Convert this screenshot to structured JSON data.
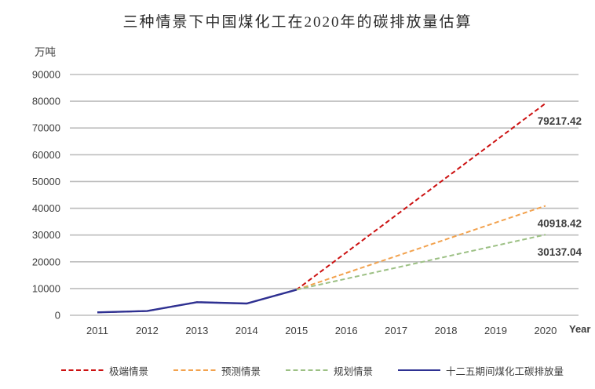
{
  "chart": {
    "title": "三种情景下中国煤化工在2020年的碳排放量估算",
    "y_unit": "万吨",
    "x_label": "Year"
  },
  "chart_data": {
    "type": "line",
    "title": "三种情景下中国煤化工在2020年的碳排放量估算",
    "ylabel": "万吨",
    "xlabel": "Year",
    "ylim": [
      0,
      90000
    ],
    "y_ticks": [
      0,
      10000,
      20000,
      30000,
      40000,
      50000,
      60000,
      70000,
      80000,
      90000
    ],
    "x_ticks": [
      2011,
      2012,
      2013,
      2014,
      2015,
      2016,
      2017,
      2018,
      2019,
      2020
    ],
    "grid": true,
    "gridline_color": "#bdbdbd",
    "legend_position": "bottom",
    "series": [
      {
        "name": "极端情景",
        "color": "#cc1111",
        "dash": true,
        "x": [
          2011,
          2012,
          2013,
          2014,
          2015,
          2020
        ],
        "values": [
          1100,
          1600,
          4900,
          4400,
          9550,
          79217.42
        ],
        "end_label": "79217.42"
      },
      {
        "name": "预测情景",
        "color": "#f2a24e",
        "dash": true,
        "x": [
          2015,
          2020
        ],
        "values": [
          9550,
          40918.42
        ],
        "end_label": "40918.42"
      },
      {
        "name": "规划情景",
        "color": "#9cc084",
        "dash": true,
        "x": [
          2015,
          2020
        ],
        "values": [
          9550,
          30137.04
        ],
        "end_label": "30137.04"
      },
      {
        "name": "十二五期间煤化工碳排放量",
        "color": "#2e3192",
        "dash": false,
        "x": [
          2011,
          2012,
          2013,
          2014,
          2015
        ],
        "values": [
          1100,
          1600,
          4900,
          4400,
          9550
        ]
      }
    ],
    "annotations": [
      "79217.42",
      "40918.42",
      "30137.04"
    ]
  },
  "legend": {
    "items": [
      {
        "label": "极端情景",
        "color": "#cc1111",
        "style": "dashed"
      },
      {
        "label": "预测情景",
        "color": "#f2a24e",
        "style": "dashed"
      },
      {
        "label": "规划情景",
        "color": "#9cc084",
        "style": "dashed"
      },
      {
        "label": "十二五期间煤化工碳排放量",
        "color": "#2e3192",
        "style": "solid"
      }
    ]
  }
}
